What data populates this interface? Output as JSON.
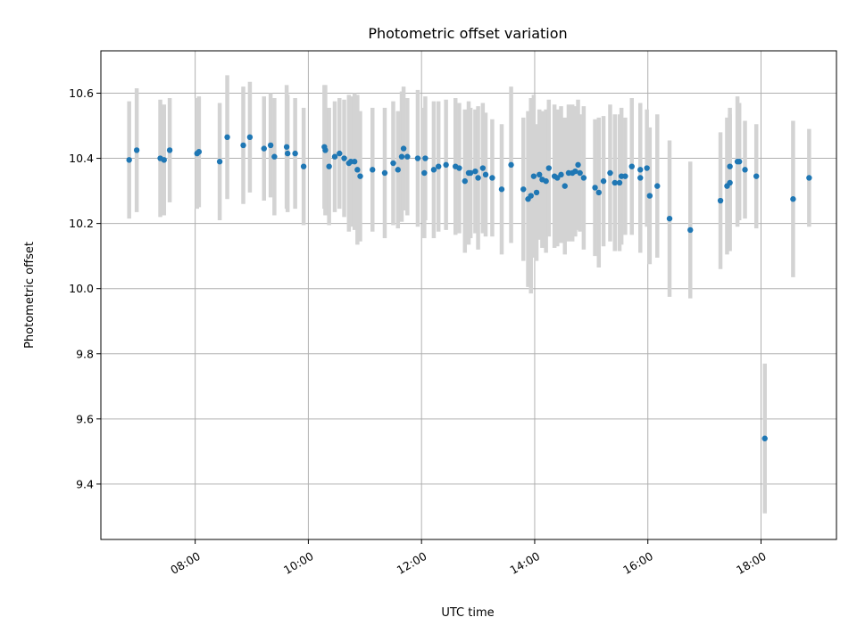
{
  "chart_data": {
    "type": "scatter",
    "title": "Photometric offset variation",
    "xlabel": "UTC time",
    "ylabel": "Photometric offset",
    "x_unit": "hours",
    "xlim": [
      "06:20",
      "19:20"
    ],
    "ylim": [
      9.23,
      10.73
    ],
    "xticks": [
      "08:00",
      "10:00",
      "12:00",
      "14:00",
      "16:00",
      "18:00"
    ],
    "yticks": [
      "9.4",
      "9.6",
      "9.8",
      "10.0",
      "10.2",
      "10.4",
      "10.6"
    ],
    "grid": true,
    "colors": {
      "points": "#1f77b4",
      "errorbars": "#d3d3d3",
      "grid": "#b0b0b0"
    },
    "series": [
      {
        "x": [
          "06:50",
          "06:58",
          "07:23",
          "07:27",
          "07:33",
          "08:02",
          "08:04",
          "08:26",
          "08:34",
          "08:51",
          "08:58",
          "09:13",
          "09:20",
          "09:24",
          "09:37",
          "09:38",
          "09:46",
          "09:55",
          "10:17",
          "10:18",
          "10:22",
          "10:28",
          "10:33",
          "10:38",
          "10:43",
          "10:45",
          "10:49",
          "10:52",
          "10:55",
          "11:08",
          "11:21",
          "11:30",
          "11:35",
          "11:39",
          "11:41",
          "11:45",
          "11:56",
          "12:03",
          "12:04",
          "12:13",
          "12:18",
          "12:26",
          "12:36",
          "12:40",
          "12:46",
          "12:50",
          "12:52",
          "12:57",
          "13:00",
          "13:05",
          "13:08",
          "13:15",
          "13:25",
          "13:35",
          "13:48",
          "13:53",
          "13:56",
          "13:59",
          "14:02",
          "14:05",
          "14:08",
          "14:12",
          "14:15",
          "14:21",
          "14:24",
          "14:28",
          "14:32",
          "14:36",
          "14:40",
          "14:43",
          "14:46",
          "14:48",
          "14:52",
          "15:04",
          "15:08",
          "15:13",
          "15:20",
          "15:25",
          "15:30",
          "15:32",
          "15:36",
          "15:43",
          "15:52",
          "15:52",
          "15:59",
          "16:02",
          "16:10",
          "16:23",
          "16:45",
          "17:17",
          "17:24",
          "17:27",
          "17:27",
          "17:35",
          "17:37",
          "17:43",
          "17:55",
          "18:04",
          "18:34",
          "18:51"
        ],
        "y": [
          10.395,
          10.425,
          10.4,
          10.395,
          10.425,
          10.415,
          10.42,
          10.39,
          10.465,
          10.44,
          10.465,
          10.43,
          10.44,
          10.405,
          10.435,
          10.415,
          10.415,
          10.375,
          10.435,
          10.425,
          10.375,
          10.405,
          10.415,
          10.4,
          10.385,
          10.39,
          10.39,
          10.365,
          10.345,
          10.365,
          10.355,
          10.385,
          10.365,
          10.405,
          10.43,
          10.405,
          10.4,
          10.355,
          10.4,
          10.365,
          10.375,
          10.38,
          10.375,
          10.37,
          10.33,
          10.355,
          10.355,
          10.36,
          10.34,
          10.37,
          10.35,
          10.34,
          10.305,
          10.38,
          10.305,
          10.275,
          10.285,
          10.345,
          10.295,
          10.35,
          10.335,
          10.33,
          10.37,
          10.345,
          10.34,
          10.35,
          10.315,
          10.355,
          10.355,
          10.36,
          10.38,
          10.355,
          10.34,
          10.31,
          10.295,
          10.33,
          10.355,
          10.325,
          10.325,
          10.345,
          10.345,
          10.375,
          10.365,
          10.34,
          10.37,
          10.285,
          10.315,
          10.215,
          10.18,
          10.27,
          10.315,
          10.375,
          10.325,
          10.39,
          10.39,
          10.365,
          10.345,
          9.54,
          10.275,
          10.34
        ],
        "err": [
          0.18,
          0.19,
          0.18,
          0.17,
          0.16,
          0.17,
          0.17,
          0.18,
          0.19,
          0.18,
          0.17,
          0.16,
          0.16,
          0.18,
          0.19,
          0.18,
          0.17,
          0.18,
          0.19,
          0.2,
          0.18,
          0.17,
          0.17,
          0.18,
          0.21,
          0.2,
          0.21,
          0.23,
          0.2,
          0.19,
          0.2,
          0.19,
          0.18,
          0.2,
          0.19,
          0.18,
          0.21,
          0.2,
          0.19,
          0.21,
          0.2,
          0.2,
          0.21,
          0.2,
          0.22,
          0.22,
          0.2,
          0.19,
          0.22,
          0.2,
          0.19,
          0.18,
          0.2,
          0.24,
          0.22,
          0.27,
          0.3,
          0.25,
          0.21,
          0.2,
          0.21,
          0.22,
          0.21,
          0.22,
          0.21,
          0.21,
          0.21,
          0.21,
          0.21,
          0.2,
          0.2,
          0.18,
          0.22,
          0.21,
          0.23,
          0.2,
          0.21,
          0.21,
          0.21,
          0.21,
          0.18,
          0.21,
          0.2,
          0.23,
          0.18,
          0.21,
          0.22,
          0.24,
          0.21,
          0.21,
          0.21,
          0.18,
          0.21,
          0.2,
          0.18,
          0.15,
          0.16,
          0.23,
          0.24,
          0.15
        ]
      }
    ]
  }
}
